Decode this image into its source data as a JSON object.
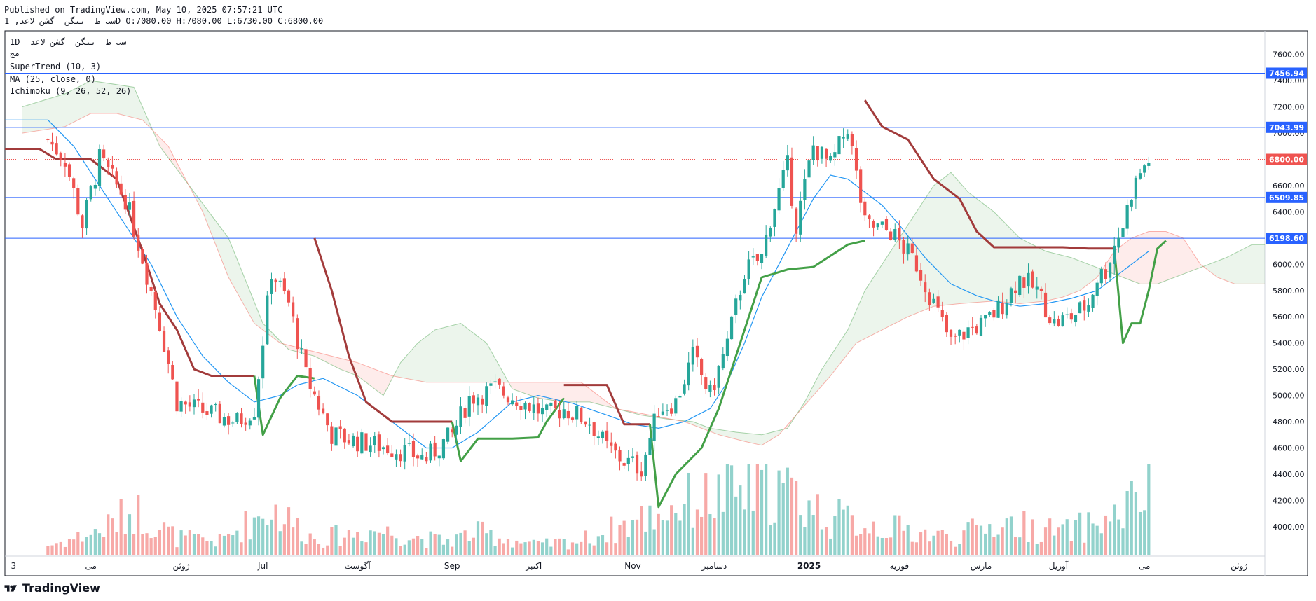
{
  "header": {
    "published": "Published on TradingView.com, May 10, 2025 07:57:21 UTC",
    "symbol_line": "سب ط  نیگن  گشن لاعد, 1D O:7080.00 H:7080.00 L:6730.00 C:6800.00"
  },
  "legend": {
    "line1": "1D  سب ط  نیگن  گشن لاعد",
    "line2": "مج",
    "supertrend": "SuperTrend (10, 3)",
    "ma": "MA (25, close, 0)",
    "ichimoku": "Ichimoku (9, 26, 52, 26)"
  },
  "brand": {
    "name": "TradingView"
  },
  "chart_data": {
    "type": "candlestick",
    "y_axis": {
      "range": [
        3780,
        7780
      ],
      "ticks": [
        7600,
        7400,
        7200,
        7000,
        6800,
        6600,
        6400,
        6200,
        6000,
        5800,
        5600,
        5400,
        5200,
        5000,
        4800,
        4600,
        4400,
        4200,
        4000
      ],
      "tick_labels": [
        "7600.00",
        "7400.00",
        "7200.00",
        "7000.00",
        "6800.00",
        "6600.00",
        "6400.00",
        "6200.00",
        "6000.00",
        "5800.00",
        "5600.00",
        "5400.00",
        "5200.00",
        "5000.00",
        "4800.00",
        "4600.00",
        "4400.00",
        "4200.00",
        "4000.00"
      ]
    },
    "x_axis": {
      "range": [
        -10,
        283
      ],
      "labels": [
        {
          "text": "3",
          "x": -8
        },
        {
          "text": "می",
          "x": 10
        },
        {
          "text": "ژوئن",
          "x": 31
        },
        {
          "text": "Jul",
          "x": 50
        },
        {
          "text": "آگوست",
          "x": 72
        },
        {
          "text": "Sep",
          "x": 94
        },
        {
          "text": "اکتبر",
          "x": 113
        },
        {
          "text": "Nov",
          "x": 136
        },
        {
          "text": "دسامبر",
          "x": 155
        },
        {
          "text": "2025",
          "x": 177
        },
        {
          "text": "فوریه",
          "x": 198
        },
        {
          "text": "مارس",
          "x": 217
        },
        {
          "text": "آوریل",
          "x": 235
        },
        {
          "text": "می",
          "x": 255
        },
        {
          "text": "ژوئن",
          "x": 277
        }
      ]
    },
    "horizontal_lines": [
      {
        "value": 7456.94,
        "label": "7456.94"
      },
      {
        "value": 7043.99,
        "label": "7043.99"
      },
      {
        "value": 6509.85,
        "label": "6509.85"
      },
      {
        "value": 6198.6,
        "label": "6198.60"
      }
    ],
    "last_price": {
      "value": 6800,
      "label": "6800.00"
    },
    "candles": {
      "close_keyframes": [
        [
          0,
          6950
        ],
        [
          4,
          6800
        ],
        [
          8,
          6300
        ],
        [
          12,
          6800
        ],
        [
          18,
          6500
        ],
        [
          22,
          6050
        ],
        [
          26,
          5550
        ],
        [
          30,
          4950
        ],
        [
          36,
          4880
        ],
        [
          44,
          4800
        ],
        [
          48,
          4900
        ],
        [
          52,
          5950
        ],
        [
          56,
          5700
        ],
        [
          60,
          5150
        ],
        [
          66,
          4700
        ],
        [
          72,
          4650
        ],
        [
          80,
          4600
        ],
        [
          88,
          4520
        ],
        [
          94,
          4700
        ],
        [
          98,
          4980
        ],
        [
          104,
          5050
        ],
        [
          110,
          4960
        ],
        [
          116,
          4850
        ],
        [
          120,
          4900
        ],
        [
          126,
          4800
        ],
        [
          130,
          4600
        ],
        [
          134,
          4500
        ],
        [
          138,
          4450
        ],
        [
          142,
          4900
        ],
        [
          146,
          4950
        ],
        [
          150,
          5300
        ],
        [
          154,
          5000
        ],
        [
          158,
          5400
        ],
        [
          162,
          5950
        ],
        [
          166,
          6050
        ],
        [
          168,
          6350
        ],
        [
          172,
          6750
        ],
        [
          174,
          6300
        ],
        [
          178,
          6900
        ],
        [
          182,
          6750
        ],
        [
          186,
          7050
        ],
        [
          190,
          6300
        ],
        [
          196,
          6250
        ],
        [
          202,
          6000
        ],
        [
          206,
          5700
        ],
        [
          210,
          5400
        ],
        [
          214,
          5500
        ],
        [
          218,
          5550
        ],
        [
          222,
          5700
        ],
        [
          226,
          5900
        ],
        [
          230,
          5800
        ],
        [
          234,
          5550
        ],
        [
          238,
          5600
        ],
        [
          242,
          5700
        ],
        [
          244,
          5900
        ],
        [
          246,
          5950
        ],
        [
          248,
          6150
        ],
        [
          250,
          6300
        ],
        [
          252,
          6550
        ],
        [
          254,
          6700
        ],
        [
          256,
          6800
        ]
      ],
      "volume_keyframes": [
        [
          0,
          40
        ],
        [
          12,
          95
        ],
        [
          20,
          180
        ],
        [
          30,
          70
        ],
        [
          40,
          55
        ],
        [
          52,
          190
        ],
        [
          62,
          65
        ],
        [
          76,
          100
        ],
        [
          92,
          55
        ],
        [
          100,
          90
        ],
        [
          114,
          40
        ],
        [
          124,
          60
        ],
        [
          136,
          130
        ],
        [
          148,
          210
        ],
        [
          158,
          240
        ],
        [
          170,
          270
        ],
        [
          182,
          150
        ],
        [
          196,
          110
        ],
        [
          210,
          70
        ],
        [
          222,
          130
        ],
        [
          236,
          90
        ],
        [
          248,
          150
        ],
        [
          254,
          230
        ],
        [
          258,
          300
        ]
      ]
    },
    "supertrend": {
      "down": [
        [
          -10,
          6880
        ],
        [
          -2,
          6880
        ],
        [
          2,
          6800
        ],
        [
          6,
          6800
        ],
        [
          10,
          6800
        ],
        [
          16,
          6650
        ],
        [
          22,
          6100
        ],
        [
          26,
          5700
        ],
        [
          30,
          5500
        ],
        [
          34,
          5200
        ],
        [
          38,
          5150
        ],
        [
          46,
          5150
        ],
        [
          48,
          5150
        ]
      ],
      "up_1": [
        [
          48,
          5150
        ],
        [
          50,
          4700
        ],
        [
          54,
          4980
        ],
        [
          58,
          5150
        ],
        [
          62,
          5130
        ]
      ],
      "down_1": [
        [
          62,
          6200
        ],
        [
          66,
          5800
        ],
        [
          70,
          5300
        ],
        [
          74,
          4950
        ],
        [
          80,
          4800
        ],
        [
          90,
          4800
        ],
        [
          94,
          4800
        ]
      ],
      "up_2": [
        [
          94,
          4800
        ],
        [
          96,
          4500
        ],
        [
          100,
          4670
        ],
        [
          108,
          4670
        ],
        [
          114,
          4680
        ],
        [
          116,
          4800
        ],
        [
          120,
          4980
        ]
      ],
      "down_2": [
        [
          120,
          5080
        ],
        [
          126,
          5080
        ],
        [
          130,
          5080
        ],
        [
          134,
          4780
        ],
        [
          140,
          4780
        ]
      ],
      "up_3": [
        [
          140,
          4780
        ],
        [
          142,
          4150
        ],
        [
          146,
          4400
        ],
        [
          152,
          4600
        ],
        [
          156,
          4900
        ],
        [
          162,
          5500
        ],
        [
          166,
          5900
        ],
        [
          172,
          5960
        ],
        [
          178,
          5980
        ],
        [
          186,
          6150
        ],
        [
          190,
          6180
        ]
      ],
      "down_3": [
        [
          190,
          7250
        ],
        [
          194,
          7050
        ],
        [
          200,
          6950
        ],
        [
          206,
          6650
        ],
        [
          212,
          6500
        ],
        [
          216,
          6250
        ],
        [
          220,
          6130
        ],
        [
          236,
          6130
        ],
        [
          242,
          6120
        ],
        [
          248,
          6120
        ]
      ],
      "up_4": [
        [
          248,
          6120
        ],
        [
          250,
          5400
        ],
        [
          252,
          5550
        ],
        [
          254,
          5550
        ],
        [
          256,
          5800
        ],
        [
          258,
          6120
        ],
        [
          260,
          6180
        ]
      ]
    },
    "ma": [
      [
        -10,
        7100
      ],
      [
        0,
        7100
      ],
      [
        6,
        6900
      ],
      [
        12,
        6600
      ],
      [
        16,
        6400
      ],
      [
        24,
        6000
      ],
      [
        30,
        5600
      ],
      [
        36,
        5300
      ],
      [
        42,
        5100
      ],
      [
        48,
        4950
      ],
      [
        54,
        5000
      ],
      [
        58,
        5080
      ],
      [
        64,
        5130
      ],
      [
        72,
        5000
      ],
      [
        80,
        4800
      ],
      [
        88,
        4600
      ],
      [
        94,
        4600
      ],
      [
        100,
        4720
      ],
      [
        108,
        4950
      ],
      [
        114,
        5000
      ],
      [
        122,
        4940
      ],
      [
        130,
        4850
      ],
      [
        136,
        4780
      ],
      [
        142,
        4750
      ],
      [
        148,
        4800
      ],
      [
        154,
        4900
      ],
      [
        158,
        5100
      ],
      [
        162,
        5400
      ],
      [
        166,
        5750
      ],
      [
        170,
        6000
      ],
      [
        174,
        6250
      ],
      [
        178,
        6500
      ],
      [
        182,
        6680
      ],
      [
        186,
        6650
      ],
      [
        190,
        6550
      ],
      [
        194,
        6450
      ],
      [
        198,
        6300
      ],
      [
        204,
        6050
      ],
      [
        210,
        5850
      ],
      [
        216,
        5760
      ],
      [
        220,
        5720
      ],
      [
        226,
        5680
      ],
      [
        232,
        5700
      ],
      [
        238,
        5740
      ],
      [
        244,
        5800
      ],
      [
        250,
        5950
      ],
      [
        256,
        6100
      ]
    ],
    "kumo": {
      "span_a": [
        [
          -6,
          7200
        ],
        [
          4,
          7300
        ],
        [
          10,
          7400
        ],
        [
          20,
          7350
        ],
        [
          26,
          6900
        ],
        [
          34,
          6550
        ],
        [
          42,
          6200
        ],
        [
          50,
          5550
        ],
        [
          56,
          5350
        ],
        [
          62,
          5300
        ],
        [
          68,
          5200
        ],
        [
          72,
          5150
        ],
        [
          78,
          5000
        ],
        [
          82,
          5250
        ],
        [
          86,
          5400
        ],
        [
          90,
          5500
        ],
        [
          96,
          5550
        ],
        [
          102,
          5400
        ],
        [
          108,
          5050
        ],
        [
          114,
          4980
        ],
        [
          120,
          4950
        ],
        [
          126,
          4950
        ],
        [
          132,
          4900
        ],
        [
          138,
          4850
        ],
        [
          144,
          4820
        ],
        [
          150,
          4800
        ],
        [
          154,
          4750
        ],
        [
          160,
          4720
        ],
        [
          166,
          4700
        ],
        [
          172,
          4750
        ],
        [
          176,
          4950
        ],
        [
          180,
          5200
        ],
        [
          186,
          5500
        ],
        [
          190,
          5800
        ],
        [
          196,
          6100
        ],
        [
          202,
          6400
        ],
        [
          206,
          6600
        ],
        [
          210,
          6700
        ],
        [
          214,
          6550
        ],
        [
          220,
          6400
        ],
        [
          226,
          6200
        ],
        [
          232,
          6100
        ],
        [
          238,
          6050
        ],
        [
          242,
          6000
        ],
        [
          246,
          5950
        ],
        [
          250,
          5900
        ],
        [
          254,
          5850
        ],
        [
          258,
          5850
        ],
        [
          262,
          5900
        ],
        [
          266,
          5950
        ],
        [
          270,
          6000
        ],
        [
          274,
          6050
        ],
        [
          280,
          6150
        ],
        [
          283,
          6150
        ]
      ],
      "span_b": [
        [
          -6,
          7000
        ],
        [
          4,
          7050
        ],
        [
          10,
          7150
        ],
        [
          16,
          7150
        ],
        [
          22,
          7100
        ],
        [
          28,
          6900
        ],
        [
          36,
          6400
        ],
        [
          42,
          5900
        ],
        [
          48,
          5550
        ],
        [
          54,
          5400
        ],
        [
          60,
          5350
        ],
        [
          66,
          5300
        ],
        [
          72,
          5250
        ],
        [
          80,
          5150
        ],
        [
          88,
          5100
        ],
        [
          96,
          5100
        ],
        [
          104,
          5100
        ],
        [
          112,
          5100
        ],
        [
          118,
          5100
        ],
        [
          124,
          5100
        ],
        [
          132,
          4900
        ],
        [
          140,
          4850
        ],
        [
          148,
          4800
        ],
        [
          156,
          4700
        ],
        [
          162,
          4650
        ],
        [
          166,
          4620
        ],
        [
          170,
          4700
        ],
        [
          174,
          4850
        ],
        [
          178,
          5000
        ],
        [
          182,
          5150
        ],
        [
          188,
          5400
        ],
        [
          194,
          5500
        ],
        [
          200,
          5600
        ],
        [
          206,
          5680
        ],
        [
          212,
          5700
        ],
        [
          220,
          5720
        ],
        [
          226,
          5700
        ],
        [
          232,
          5720
        ],
        [
          236,
          5750
        ],
        [
          240,
          5800
        ],
        [
          244,
          5900
        ],
        [
          248,
          6100
        ],
        [
          252,
          6200
        ],
        [
          256,
          6250
        ],
        [
          260,
          6250
        ],
        [
          264,
          6200
        ],
        [
          268,
          6000
        ],
        [
          272,
          5900
        ],
        [
          276,
          5850
        ],
        [
          280,
          5850
        ],
        [
          283,
          5850
        ]
      ]
    }
  }
}
